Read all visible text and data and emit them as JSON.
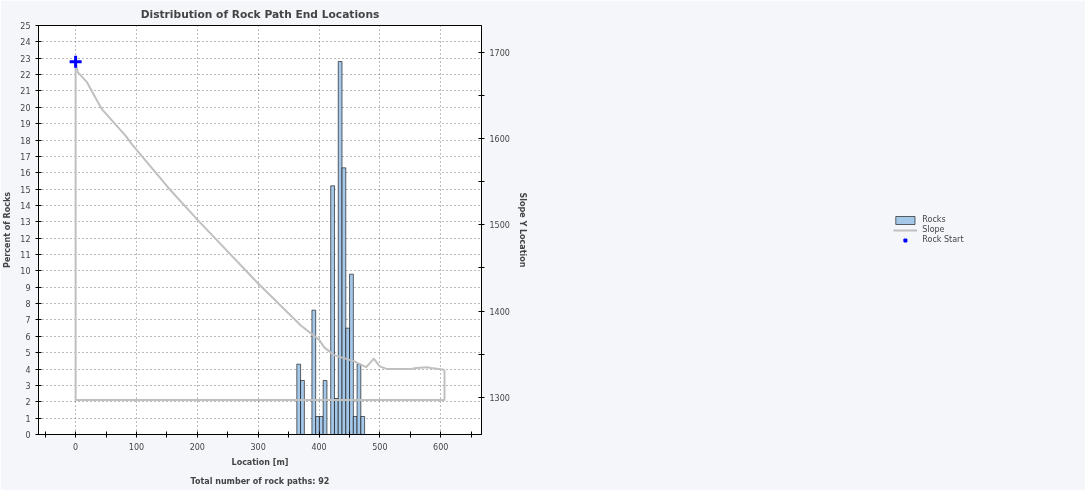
{
  "chart_data": {
    "type": "histogram",
    "title": "Distribution of Rock Path End Locations",
    "xlabel": "Location [m]",
    "ylabel": "Percent of Rocks",
    "y2label": "Slope Y Location",
    "annotations": [
      "Total number of rock paths: 92"
    ],
    "bins": [
      363.5,
      369.7,
      375.9,
      382.1,
      388.3,
      394.5,
      400.6,
      406.8,
      413.0,
      419.2,
      425.4,
      431.6,
      437.8,
      444.0,
      450.2,
      456.4,
      462.5,
      468.7,
      474.9
    ],
    "series": [
      {
        "name": "Rocks",
        "type": "histogram",
        "color": "#a6c8e8",
        "values": [
          4.3,
          3.3,
          null,
          null,
          7.6,
          1.1,
          1.1,
          3.3,
          null,
          15.2,
          2.2,
          22.8,
          16.3,
          6.5,
          9.8,
          1.1,
          4.3,
          1.1
        ]
      },
      {
        "name": "Slope",
        "type": "line",
        "axis": "y2",
        "color": "#c0c0c0",
        "x": [
          0,
          3.5,
          18.9,
          43.1,
          82.3,
          93,
          152.3,
          200,
          300,
          370.6,
          400,
          408.6,
          424.8,
          457,
          477.3,
          484,
          490,
          499.7,
          511,
          551.5,
          559.6,
          578.5,
          584,
          606.2
        ],
        "values": [
          1687,
          1677,
          1665,
          1634,
          1603,
          1593,
          1543,
          1506,
          1432,
          1383,
          1367,
          1358,
          1349,
          1342,
          1335,
          1340,
          1345,
          1336,
          1333,
          1333,
          1334,
          1335,
          1334,
          1332
        ]
      },
      {
        "type": "line",
        "axis": "y2",
        "color": "#c0c0c0",
        "x": [
          606.2,
          606.2,
          0,
          0
        ],
        "values": [
          1332,
          1297,
          1297,
          1687
        ]
      },
      {
        "name": "Rock Start",
        "type": "scatter",
        "axis": "y2",
        "marker": "cross",
        "color": "#0000ff",
        "x": [
          0
        ],
        "values": [
          1689
        ]
      }
    ],
    "xlim": [
      -61,
      667
    ],
    "xticks": [
      {
        "value": -50,
        "label": null
      },
      0,
      {
        "value": 50,
        "label": null
      },
      100,
      {
        "value": 150,
        "label": null
      },
      200,
      {
        "value": 250,
        "label": null
      },
      300,
      {
        "value": 350,
        "label": null
      },
      400,
      {
        "value": 450,
        "label": null
      },
      500,
      {
        "value": 550,
        "label": null
      },
      600,
      {
        "value": 650,
        "label": null
      }
    ],
    "ylim": [
      0,
      25
    ],
    "yticks": [
      0,
      1,
      2,
      3,
      4,
      5,
      6,
      7,
      8,
      9,
      10,
      11,
      12,
      13,
      14,
      15,
      16,
      17,
      18,
      19,
      20,
      21,
      22,
      23,
      24,
      25
    ],
    "y2lim": [
      1257,
      1731
    ],
    "y2ticks": [
      1300,
      {
        "value": 1350,
        "label": null
      },
      1400,
      {
        "value": 1450,
        "label": null
      },
      1500,
      {
        "value": 1550,
        "label": null
      },
      1600,
      {
        "value": 1650,
        "label": null
      },
      1700
    ],
    "grid": true,
    "legend": "right"
  }
}
